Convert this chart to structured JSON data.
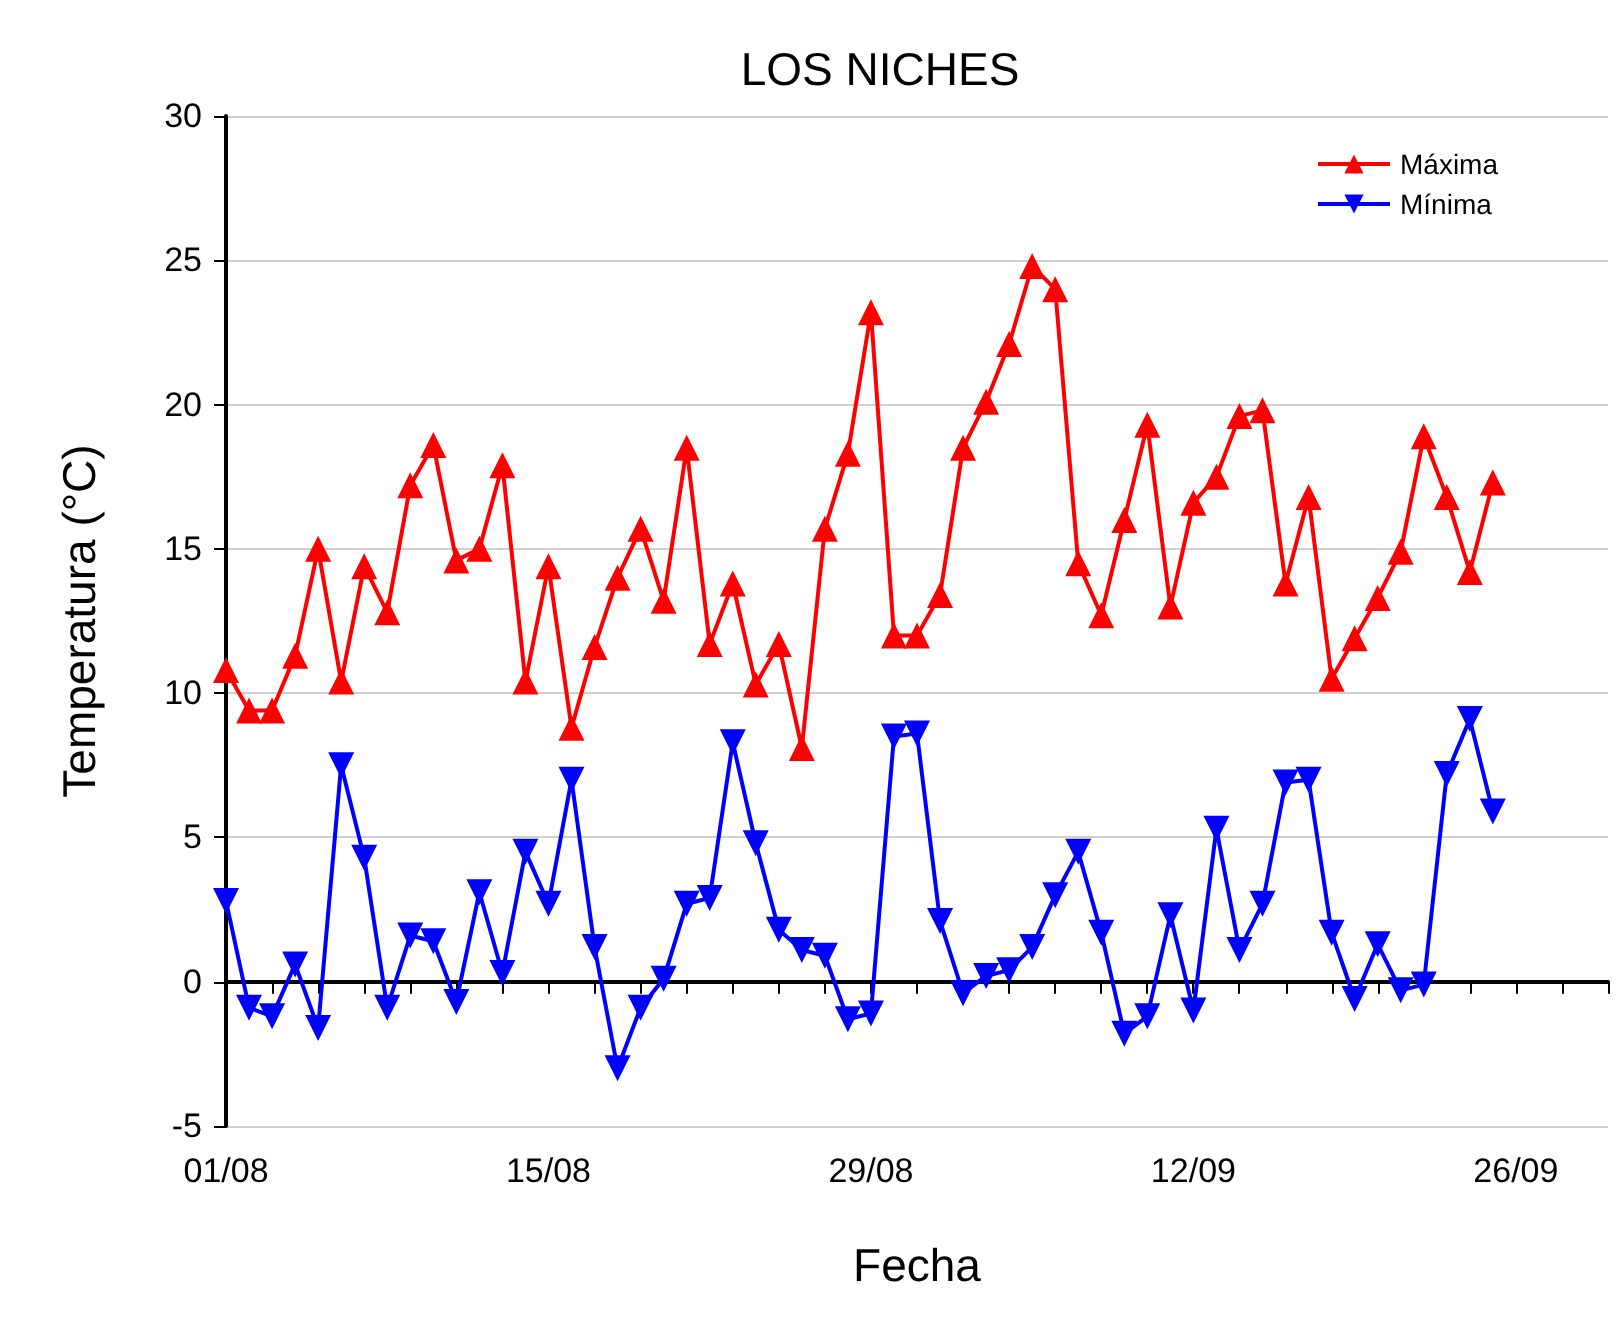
{
  "chart_data": {
    "type": "line",
    "title": "LOS NICHES",
    "xlabel": "Fecha",
    "ylabel": "Temperatura (°C)",
    "x": [
      "--08-01",
      "--08-02",
      "--08-03",
      "--08-04",
      "--08-05",
      "--08-06",
      "--08-07",
      "--08-08",
      "--08-09",
      "--08-10",
      "--08-11",
      "--08-12",
      "--08-13",
      "--08-14",
      "--08-15",
      "--08-16",
      "--08-17",
      "--08-18",
      "--08-19",
      "--08-20",
      "--08-21",
      "--08-22",
      "--08-23",
      "--08-24",
      "--08-25",
      "--08-26",
      "--08-27",
      "--08-28",
      "--08-29",
      "--08-30",
      "--08-31",
      "--09-01",
      "--09-02",
      "--09-03",
      "--09-04",
      "--09-05",
      "--09-06",
      "--09-07",
      "--09-08",
      "--09-09",
      "--09-10",
      "--09-11",
      "--09-12",
      "--09-13",
      "--09-14",
      "--09-15",
      "--09-16",
      "--09-17",
      "--09-18",
      "--09-19",
      "--09-20",
      "--09-21",
      "--09-22",
      "--09-23",
      "--09-24",
      "--09-25"
    ],
    "series": [
      {
        "name": "Máxima",
        "color": "#ff0000",
        "marker": "triangle",
        "values": [
          10.8,
          9.4,
          9.4,
          11.3,
          15.0,
          10.4,
          14.4,
          12.8,
          17.2,
          18.6,
          14.6,
          15.0,
          17.9,
          10.4,
          14.4,
          8.8,
          11.6,
          14.0,
          15.7,
          13.2,
          18.5,
          11.7,
          13.8,
          10.3,
          11.7,
          8.1,
          15.7,
          18.3,
          23.2,
          12.0,
          12.0,
          13.4,
          18.5,
          20.1,
          22.1,
          24.8,
          24.0,
          14.5,
          12.7,
          16.0,
          19.3,
          13.0,
          16.6,
          17.5,
          19.6,
          19.8,
          13.8,
          16.8,
          10.5,
          11.9,
          13.3,
          14.9,
          18.9,
          16.8,
          14.2,
          17.3
        ]
      },
      {
        "name": "Mínima",
        "color": "#0000ff",
        "marker": "triangle-down",
        "values": [
          2.8,
          -0.9,
          -1.2,
          0.6,
          -1.6,
          7.5,
          4.3,
          -0.9,
          1.6,
          1.4,
          -0.7,
          3.1,
          0.3,
          4.5,
          2.7,
          7.0,
          1.2,
          -3.0,
          -0.9,
          0.1,
          2.7,
          2.9,
          8.3,
          4.8,
          1.8,
          1.1,
          0.9,
          -1.3,
          -1.1,
          8.5,
          8.6,
          2.1,
          -0.4,
          0.2,
          0.4,
          1.2,
          3.0,
          4.5,
          1.7,
          -1.8,
          -1.2,
          2.3,
          -1.0,
          5.3,
          1.1,
          2.7,
          6.9,
          7.0,
          1.7,
          -0.6,
          1.3,
          -0.3,
          -0.1,
          7.2,
          9.1,
          5.9
        ]
      }
    ],
    "xlim": [
      "--08-01",
      "--09-30"
    ],
    "xticks": [
      {
        "value": "--08-01",
        "label": "01/08"
      },
      {
        "value": "--08-03",
        "label": null
      },
      {
        "value": "--08-05",
        "label": null
      },
      {
        "value": "--08-07",
        "label": null
      },
      {
        "value": "--08-09",
        "label": null
      },
      {
        "value": "--08-11",
        "label": null
      },
      {
        "value": "--08-13",
        "label": null
      },
      {
        "value": "--08-15",
        "label": "15/08"
      },
      {
        "value": "--08-17",
        "label": null
      },
      {
        "value": "--08-19",
        "label": null
      },
      {
        "value": "--08-21",
        "label": null
      },
      {
        "value": "--08-23",
        "label": null
      },
      {
        "value": "--08-25",
        "label": null
      },
      {
        "value": "--08-27",
        "label": null
      },
      {
        "value": "--08-29",
        "label": "29/08"
      },
      {
        "value": "--08-31",
        "label": null
      },
      {
        "value": "--09-02",
        "label": null
      },
      {
        "value": "--09-04",
        "label": null
      },
      {
        "value": "--09-06",
        "label": null
      },
      {
        "value": "--09-08",
        "label": null
      },
      {
        "value": "--09-10",
        "label": null
      },
      {
        "value": "--09-12",
        "label": "12/09"
      },
      {
        "value": "--09-14",
        "label": null
      },
      {
        "value": "--09-16",
        "label": null
      },
      {
        "value": "--09-18",
        "label": null
      },
      {
        "value": "--09-20",
        "label": null
      },
      {
        "value": "--09-22",
        "label": null
      },
      {
        "value": "--09-24",
        "label": null
      },
      {
        "value": "--09-26",
        "label": "26/09"
      },
      {
        "value": "--09-28",
        "label": null
      },
      {
        "value": "--09-30",
        "label": null
      }
    ],
    "ylim": [
      -5,
      30
    ],
    "yticks": [
      -5,
      0,
      5,
      10,
      15,
      20,
      25,
      30
    ],
    "grid": "y",
    "legend": "top right",
    "line_style": "solid"
  }
}
